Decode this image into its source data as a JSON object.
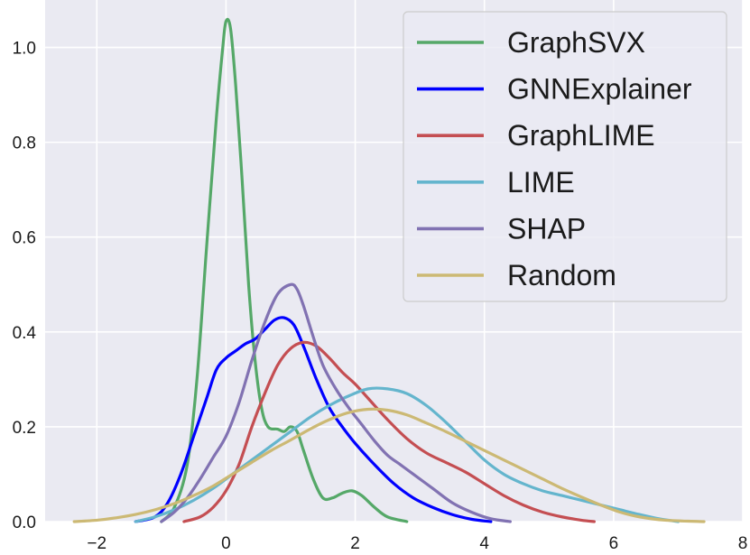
{
  "chart_data": {
    "type": "line",
    "title": "",
    "xlabel": "",
    "ylabel": "",
    "xlim": [
      -2.8,
      8
    ],
    "ylim": [
      0,
      1.1
    ],
    "x_ticks": [
      "−2",
      "0",
      "2",
      "4",
      "6",
      "8"
    ],
    "x_tick_values": [
      -2,
      0,
      2,
      4,
      6,
      8
    ],
    "y_ticks": [
      "0.0",
      "0.2",
      "0.4",
      "0.6",
      "0.8",
      "1.0"
    ],
    "y_tick_values": [
      0.0,
      0.2,
      0.4,
      0.6,
      0.8,
      1.0
    ],
    "grid": true,
    "background": "#eaeaf2",
    "legend_position": "top-right",
    "series": [
      {
        "name": "GraphSVX",
        "color": "#55a868",
        "points": [
          [
            -1.0,
            0.0
          ],
          [
            -0.8,
            0.03
          ],
          [
            -0.6,
            0.12
          ],
          [
            -0.45,
            0.3
          ],
          [
            -0.3,
            0.58
          ],
          [
            -0.15,
            0.85
          ],
          [
            -0.05,
            1.0
          ],
          [
            0.0,
            1.055
          ],
          [
            0.07,
            1.04
          ],
          [
            0.15,
            0.92
          ],
          [
            0.25,
            0.72
          ],
          [
            0.35,
            0.5
          ],
          [
            0.45,
            0.34
          ],
          [
            0.55,
            0.24
          ],
          [
            0.65,
            0.2
          ],
          [
            0.8,
            0.195
          ],
          [
            0.9,
            0.19
          ],
          [
            1.0,
            0.2
          ],
          [
            1.1,
            0.19
          ],
          [
            1.2,
            0.15
          ],
          [
            1.35,
            0.09
          ],
          [
            1.5,
            0.05
          ],
          [
            1.65,
            0.05
          ],
          [
            1.8,
            0.06
          ],
          [
            1.95,
            0.065
          ],
          [
            2.1,
            0.055
          ],
          [
            2.3,
            0.03
          ],
          [
            2.5,
            0.01
          ],
          [
            2.8,
            0.0
          ]
        ]
      },
      {
        "name": "GNNExplainer",
        "color": "#0000ff",
        "points": [
          [
            -1.4,
            0.0
          ],
          [
            -1.1,
            0.01
          ],
          [
            -0.9,
            0.04
          ],
          [
            -0.7,
            0.1
          ],
          [
            -0.5,
            0.18
          ],
          [
            -0.3,
            0.26
          ],
          [
            -0.15,
            0.32
          ],
          [
            0.0,
            0.345
          ],
          [
            0.15,
            0.36
          ],
          [
            0.3,
            0.375
          ],
          [
            0.45,
            0.385
          ],
          [
            0.6,
            0.405
          ],
          [
            0.75,
            0.425
          ],
          [
            0.9,
            0.43
          ],
          [
            1.05,
            0.415
          ],
          [
            1.2,
            0.37
          ],
          [
            1.4,
            0.3
          ],
          [
            1.6,
            0.24
          ],
          [
            1.8,
            0.2
          ],
          [
            2.0,
            0.165
          ],
          [
            2.3,
            0.12
          ],
          [
            2.6,
            0.08
          ],
          [
            2.9,
            0.05
          ],
          [
            3.2,
            0.03
          ],
          [
            3.5,
            0.015
          ],
          [
            3.8,
            0.005
          ],
          [
            4.1,
            0.0
          ]
        ]
      },
      {
        "name": "GraphLIME",
        "color": "#c44e52",
        "points": [
          [
            -0.65,
            0.0
          ],
          [
            -0.4,
            0.01
          ],
          [
            -0.2,
            0.03
          ],
          [
            0.0,
            0.065
          ],
          [
            0.2,
            0.12
          ],
          [
            0.4,
            0.2
          ],
          [
            0.6,
            0.27
          ],
          [
            0.8,
            0.33
          ],
          [
            1.0,
            0.365
          ],
          [
            1.2,
            0.378
          ],
          [
            1.4,
            0.37
          ],
          [
            1.6,
            0.345
          ],
          [
            1.8,
            0.315
          ],
          [
            2.0,
            0.29
          ],
          [
            2.2,
            0.26
          ],
          [
            2.5,
            0.215
          ],
          [
            2.8,
            0.175
          ],
          [
            3.1,
            0.145
          ],
          [
            3.4,
            0.125
          ],
          [
            3.7,
            0.105
          ],
          [
            4.0,
            0.08
          ],
          [
            4.3,
            0.055
          ],
          [
            4.6,
            0.035
          ],
          [
            4.9,
            0.02
          ],
          [
            5.2,
            0.01
          ],
          [
            5.5,
            0.003
          ],
          [
            5.7,
            0.0
          ]
        ]
      },
      {
        "name": "LIME",
        "color": "#64b5cd",
        "points": [
          [
            -1.4,
            0.0
          ],
          [
            -1.1,
            0.01
          ],
          [
            -0.8,
            0.025
          ],
          [
            -0.5,
            0.045
          ],
          [
            -0.2,
            0.07
          ],
          [
            0.1,
            0.1
          ],
          [
            0.4,
            0.13
          ],
          [
            0.7,
            0.16
          ],
          [
            1.0,
            0.19
          ],
          [
            1.3,
            0.22
          ],
          [
            1.6,
            0.245
          ],
          [
            1.9,
            0.265
          ],
          [
            2.2,
            0.28
          ],
          [
            2.5,
            0.28
          ],
          [
            2.8,
            0.27
          ],
          [
            3.1,
            0.245
          ],
          [
            3.4,
            0.21
          ],
          [
            3.7,
            0.17
          ],
          [
            4.0,
            0.13
          ],
          [
            4.3,
            0.1
          ],
          [
            4.6,
            0.08
          ],
          [
            4.9,
            0.065
          ],
          [
            5.2,
            0.055
          ],
          [
            5.5,
            0.045
          ],
          [
            5.8,
            0.035
          ],
          [
            6.1,
            0.025
          ],
          [
            6.4,
            0.015
          ],
          [
            6.7,
            0.006
          ],
          [
            7.0,
            0.0
          ]
        ]
      },
      {
        "name": "SHAP",
        "color": "#8172b2",
        "points": [
          [
            -1.0,
            0.0
          ],
          [
            -0.8,
            0.02
          ],
          [
            -0.6,
            0.05
          ],
          [
            -0.4,
            0.09
          ],
          [
            -0.2,
            0.135
          ],
          [
            0.0,
            0.18
          ],
          [
            0.2,
            0.25
          ],
          [
            0.4,
            0.34
          ],
          [
            0.6,
            0.42
          ],
          [
            0.8,
            0.48
          ],
          [
            1.0,
            0.5
          ],
          [
            1.1,
            0.49
          ],
          [
            1.2,
            0.455
          ],
          [
            1.35,
            0.39
          ],
          [
            1.5,
            0.33
          ],
          [
            1.7,
            0.28
          ],
          [
            1.9,
            0.24
          ],
          [
            2.1,
            0.205
          ],
          [
            2.3,
            0.17
          ],
          [
            2.5,
            0.14
          ],
          [
            2.7,
            0.12
          ],
          [
            2.9,
            0.1
          ],
          [
            3.2,
            0.07
          ],
          [
            3.5,
            0.04
          ],
          [
            3.8,
            0.02
          ],
          [
            4.1,
            0.006
          ],
          [
            4.4,
            0.0
          ]
        ]
      },
      {
        "name": "Random",
        "color": "#ccb974",
        "points": [
          [
            -2.35,
            0.0
          ],
          [
            -2.0,
            0.003
          ],
          [
            -1.7,
            0.008
          ],
          [
            -1.4,
            0.015
          ],
          [
            -1.1,
            0.025
          ],
          [
            -0.8,
            0.038
          ],
          [
            -0.5,
            0.055
          ],
          [
            -0.2,
            0.075
          ],
          [
            0.1,
            0.1
          ],
          [
            0.4,
            0.125
          ],
          [
            0.7,
            0.15
          ],
          [
            1.0,
            0.172
          ],
          [
            1.3,
            0.195
          ],
          [
            1.6,
            0.215
          ],
          [
            1.9,
            0.23
          ],
          [
            2.2,
            0.237
          ],
          [
            2.5,
            0.235
          ],
          [
            2.8,
            0.225
          ],
          [
            3.1,
            0.208
          ],
          [
            3.4,
            0.19
          ],
          [
            3.7,
            0.17
          ],
          [
            4.0,
            0.15
          ],
          [
            4.3,
            0.13
          ],
          [
            4.6,
            0.11
          ],
          [
            4.9,
            0.09
          ],
          [
            5.2,
            0.07
          ],
          [
            5.5,
            0.052
          ],
          [
            5.8,
            0.035
          ],
          [
            6.1,
            0.02
          ],
          [
            6.4,
            0.01
          ],
          [
            6.8,
            0.003
          ],
          [
            7.4,
            0.0
          ]
        ]
      }
    ]
  }
}
